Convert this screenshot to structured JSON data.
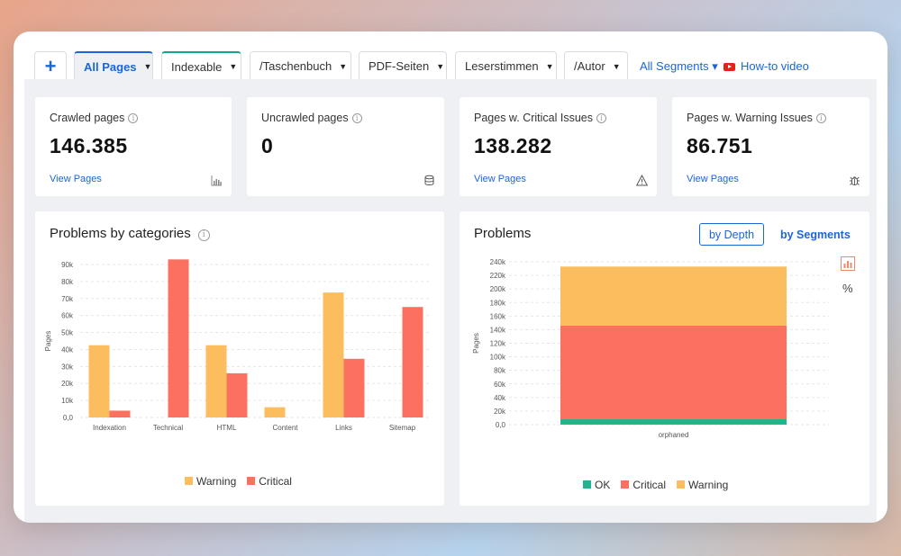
{
  "tabs": {
    "add_label": "+",
    "items": [
      {
        "label": "All Pages"
      },
      {
        "label": "Indexable"
      },
      {
        "label": "/Taschenbuch"
      },
      {
        "label": "PDF-Seiten"
      },
      {
        "label": "Leserstimmen"
      },
      {
        "label": "/Autor"
      }
    ],
    "segments_label": "All Segments ▾",
    "howto_label": "How-to video"
  },
  "stats": [
    {
      "title": "Crawled pages",
      "value": "146.385",
      "link": "View Pages",
      "icon": "bar-chart-icon"
    },
    {
      "title": "Uncrawled pages",
      "value": "0",
      "link": "",
      "icon": "database-icon"
    },
    {
      "title": "Pages w. Critical Issues",
      "value": "138.282",
      "link": "View Pages",
      "icon": "warning-triangle-icon"
    },
    {
      "title": "Pages w. Warning Issues",
      "value": "86.751",
      "link": "View Pages",
      "icon": "bug-icon"
    }
  ],
  "info_glyph": "i",
  "problems_panel": {
    "title": "Problems",
    "btn_depth": "by Depth",
    "btn_segments": "by Segments",
    "percent_label": "%"
  },
  "colors": {
    "warning": "#fbbd5e",
    "critical": "#fc7060",
    "ok": "#22b38f",
    "accent": "#1a66d9"
  },
  "chart_data": [
    {
      "type": "bar",
      "title": "Problems by categories",
      "ylabel": "Pages",
      "xlabel": "",
      "categories": [
        "Indexation",
        "Technical",
        "HTML",
        "Content",
        "Links",
        "Sitemap"
      ],
      "series": [
        {
          "name": "Warning",
          "values": [
            42500,
            0,
            42500,
            6000,
            73500,
            0
          ]
        },
        {
          "name": "Critical",
          "values": [
            4000,
            93000,
            26000,
            0,
            34500,
            65000
          ]
        }
      ],
      "ylim": [
        0,
        90000
      ],
      "yticks": [
        "0,0",
        "10k",
        "20k",
        "30k",
        "40k",
        "50k",
        "60k",
        "70k",
        "80k",
        "90k"
      ],
      "grid": true,
      "legend": "bottom"
    },
    {
      "type": "bar",
      "stacked": true,
      "title": "Problems",
      "ylabel": "Pages",
      "xlabel": "",
      "categories": [
        "orphaned"
      ],
      "series": [
        {
          "name": "OK",
          "values": [
            8000
          ]
        },
        {
          "name": "Critical",
          "values": [
            138000
          ]
        },
        {
          "name": "Warning",
          "values": [
            87000
          ]
        }
      ],
      "ylim": [
        0,
        240000
      ],
      "yticks": [
        "0,0",
        "20k",
        "40k",
        "60k",
        "80k",
        "100k",
        "120k",
        "140k",
        "160k",
        "180k",
        "200k",
        "220k",
        "240k"
      ],
      "grid": true,
      "legend": "bottom"
    }
  ]
}
